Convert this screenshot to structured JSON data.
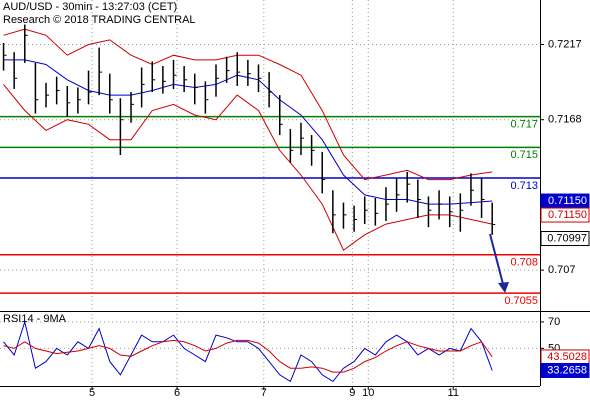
{
  "chart_data": [
    {
      "type": "ohlc",
      "title": "AUD/USD - 30min - 13:27:03 (CET)",
      "subtitle": "Research © 2018 TRADING CENTRAL",
      "x": [
        0,
        6,
        12,
        18,
        24,
        30,
        36,
        42,
        48,
        54,
        60,
        66,
        72,
        78,
        84,
        90,
        96,
        102,
        108,
        114,
        120,
        126,
        132,
        138,
        144,
        150,
        156,
        162,
        168,
        174,
        180,
        186,
        192,
        198,
        204,
        210,
        216,
        222,
        228,
        234,
        240,
        246,
        252,
        258,
        264,
        270,
        276
      ],
      "high": [
        0.7218,
        0.7212,
        0.723,
        0.7205,
        0.7192,
        0.7196,
        0.719,
        0.7189,
        0.72,
        0.7215,
        0.7198,
        0.7182,
        0.7186,
        0.7202,
        0.7206,
        0.7203,
        0.7207,
        0.7203,
        0.7198,
        0.7193,
        0.7204,
        0.7209,
        0.7212,
        0.7207,
        0.7204,
        0.7199,
        0.7184,
        0.7162,
        0.7166,
        0.7158,
        0.7147,
        0.7122,
        0.7114,
        0.7112,
        0.7118,
        0.7117,
        0.7124,
        0.713,
        0.7134,
        0.7129,
        0.7118,
        0.7122,
        0.7118,
        0.712,
        0.7133,
        0.713,
        0.7114
      ],
      "low": [
        0.72,
        0.7188,
        0.7205,
        0.7172,
        0.7176,
        0.7178,
        0.717,
        0.7172,
        0.7178,
        0.7184,
        0.7172,
        0.7145,
        0.7166,
        0.7176,
        0.7186,
        0.7185,
        0.7188,
        0.7186,
        0.7178,
        0.7172,
        0.7183,
        0.7192,
        0.719,
        0.719,
        0.7186,
        0.7176,
        0.7158,
        0.714,
        0.7145,
        0.7138,
        0.712,
        0.7094,
        0.7097,
        0.7095,
        0.71,
        0.7099,
        0.7102,
        0.7108,
        0.7114,
        0.7104,
        0.7098,
        0.7103,
        0.7098,
        0.7095,
        0.7112,
        0.7104,
        0.7093
      ],
      "close": [
        0.721,
        0.7195,
        0.7223,
        0.7181,
        0.7184,
        0.7187,
        0.7179,
        0.7181,
        0.7186,
        0.7199,
        0.7181,
        0.7168,
        0.7178,
        0.7191,
        0.7194,
        0.7193,
        0.7197,
        0.7194,
        0.7189,
        0.7181,
        0.7195,
        0.72,
        0.7199,
        0.7198,
        0.7195,
        0.7186,
        0.7165,
        0.7148,
        0.7156,
        0.7148,
        0.7129,
        0.7106,
        0.7106,
        0.7103,
        0.7109,
        0.7107,
        0.7113,
        0.7119,
        0.7126,
        0.7116,
        0.7109,
        0.7113,
        0.7108,
        0.7109,
        0.7122,
        0.7116,
        0.70997
      ],
      "color": "#000000",
      "bands": {
        "x": [
          0,
          12,
          24,
          36,
          48,
          60,
          72,
          84,
          96,
          108,
          120,
          132,
          144,
          156,
          168,
          180,
          192,
          204,
          216,
          228,
          240,
          252,
          264,
          276
        ],
        "upper": [
          0.7223,
          0.7227,
          0.7223,
          0.721,
          0.7217,
          0.722,
          0.721,
          0.7204,
          0.721,
          0.7207,
          0.7207,
          0.721,
          0.721,
          0.7204,
          0.7197,
          0.7174,
          0.7145,
          0.7129,
          0.7132,
          0.7135,
          0.7129,
          0.7129,
          0.7132,
          0.7134
        ],
        "lower": [
          0.7191,
          0.7174,
          0.7161,
          0.7168,
          0.7165,
          0.7155,
          0.7155,
          0.7174,
          0.7178,
          0.7171,
          0.7168,
          0.7184,
          0.7174,
          0.7148,
          0.7132,
          0.7113,
          0.7083,
          0.7093,
          0.71,
          0.7103,
          0.7106,
          0.7106,
          0.7103,
          0.71
        ],
        "ma": [
          0.7207,
          0.7207,
          0.7204,
          0.7194,
          0.7187,
          0.7184,
          0.7184,
          0.7187,
          0.7191,
          0.7189,
          0.7191,
          0.7197,
          0.7194,
          0.7181,
          0.7171,
          0.7155,
          0.7132,
          0.7119,
          0.7116,
          0.7116,
          0.7113,
          0.7113,
          0.7114,
          0.7115
        ],
        "band_color": "#cc0000",
        "ma_color": "#0000cc"
      },
      "levels": [
        {
          "value": 0.717,
          "label": "0.717",
          "color": "#008000"
        },
        {
          "value": 0.715,
          "label": "0.715",
          "color": "#008000"
        },
        {
          "value": 0.713,
          "label": "0.713",
          "color": "#0000cc"
        },
        {
          "value": 0.708,
          "label": "0.708",
          "color": "#ee0000"
        },
        {
          "value": 0.7055,
          "label": "0.7055",
          "color": "#ee0000"
        }
      ],
      "price_labels": [
        {
          "value": 0.7115,
          "label": "0.71150",
          "color": "#0000cc",
          "style": "filled"
        },
        {
          "value": 0.7115,
          "label": "0.71150",
          "color": "#cc0000",
          "style": "outline"
        },
        {
          "value": 0.70997,
          "label": "0.70997",
          "color": "#000000",
          "style": "outline"
        }
      ],
      "xlim": [
        -2,
        303
      ],
      "xticks": [
        {
          "value": 50,
          "label": "5"
        },
        {
          "value": 98,
          "label": "6"
        },
        {
          "value": 147,
          "label": "7"
        },
        {
          "value": 197,
          "label": "9"
        },
        {
          "value": 206,
          "label": "10"
        },
        {
          "value": 254,
          "label": "11"
        }
      ],
      "ylim": [
        0.7044,
        0.7246
      ],
      "yticks": [
        0.7217,
        0.7168,
        0.707
      ],
      "grid": true
    },
    {
      "type": "line",
      "title": "RSI14 - 9MA",
      "x": [
        0,
        6,
        12,
        18,
        24,
        30,
        36,
        42,
        48,
        54,
        60,
        66,
        72,
        78,
        84,
        90,
        96,
        102,
        108,
        114,
        120,
        126,
        132,
        138,
        144,
        150,
        156,
        162,
        168,
        174,
        180,
        186,
        192,
        198,
        204,
        210,
        216,
        222,
        228,
        234,
        240,
        246,
        252,
        258,
        264,
        270,
        276
      ],
      "series": [
        {
          "color": "#0000cc",
          "values": [
            55,
            45,
            70,
            35,
            40,
            50,
            45,
            55,
            50,
            65,
            40,
            30,
            45,
            60,
            55,
            55,
            60,
            50,
            45,
            40,
            60,
            58,
            55,
            55,
            50,
            40,
            30,
            25,
            45,
            40,
            30,
            25,
            35,
            40,
            50,
            45,
            55,
            60,
            55,
            45,
            50,
            45,
            50,
            48,
            65,
            55,
            33.2658
          ]
        },
        {
          "color": "#cc0000",
          "values": [
            52,
            50,
            55,
            50,
            48,
            46,
            47,
            48,
            50,
            52,
            50,
            45,
            44,
            48,
            52,
            55,
            56,
            55,
            52,
            48,
            50,
            54,
            56,
            56,
            54,
            48,
            40,
            35,
            35,
            36,
            35,
            32,
            32,
            35,
            40,
            43,
            48,
            52,
            55,
            52,
            50,
            48,
            48,
            48,
            52,
            55,
            43.5028
          ]
        }
      ],
      "value_labels": [
        {
          "value": 43.5028,
          "label": "43.5028",
          "color": "#cc0000",
          "style": "outline"
        },
        {
          "value": 33.2658,
          "label": "33.2658",
          "color": "#0000cc",
          "style": "filled"
        }
      ],
      "xlim": [
        -2,
        303
      ],
      "ylim": [
        20,
        76
      ],
      "yticks": [
        70,
        50
      ],
      "grid": true
    }
  ]
}
